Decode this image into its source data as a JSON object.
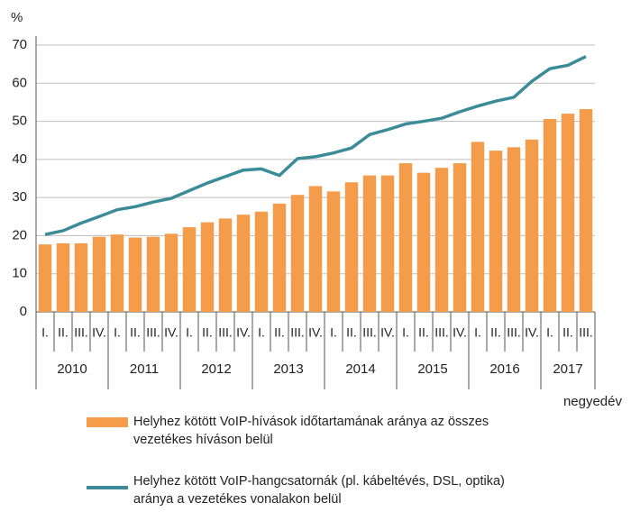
{
  "chart_data": {
    "type": "bar-line",
    "y_label": "%",
    "x_label": "negyedév",
    "categories": [
      "I.",
      "II.",
      "III.",
      "IV.",
      "I.",
      "II.",
      "III.",
      "IV.",
      "I.",
      "II.",
      "III.",
      "IV.",
      "I.",
      "II.",
      "III.",
      "IV.",
      "I.",
      "II.",
      "III.",
      "IV.",
      "I.",
      "II.",
      "III.",
      "IV.",
      "I.",
      "II.",
      "III.",
      "IV.",
      "I.",
      "II.",
      "III."
    ],
    "years": [
      "2010",
      "2011",
      "2012",
      "2013",
      "2014",
      "2015",
      "2016",
      "2017"
    ],
    "ylim": [
      0,
      70
    ],
    "yticks": [
      0,
      10,
      20,
      30,
      40,
      50,
      60,
      70
    ],
    "grid": true,
    "series": [
      {
        "name": "Helyhez kötött VoIP-hívások időtartamának aránya az összes vezetékes híváson belül",
        "type": "bar",
        "color": "#f59c4b",
        "values": [
          17.7,
          18,
          18,
          19.7,
          20.3,
          19.5,
          19.7,
          20.5,
          22.2,
          23.5,
          24.5,
          25.5,
          26.3,
          28.4,
          30.7,
          33,
          31.6,
          34,
          35.8,
          35.8,
          39,
          36.5,
          37.8,
          39,
          44.6,
          42.3,
          43.2,
          45.2,
          50.6,
          52,
          53.2
        ]
      },
      {
        "name": "Helyhez kötött VoIP-hangcsatornák (pl. kábeltévés, DSL, optika) aránya a vezetékes vonalakon belül",
        "type": "line",
        "color": "#3b8c98",
        "values": [
          20.3,
          21.3,
          23.3,
          25,
          26.8,
          27.6,
          28.8,
          29.8,
          31.8,
          33.8,
          35.5,
          37.2,
          37.5,
          35.8,
          40.2,
          40.7,
          41.7,
          43,
          46.5,
          47.8,
          49.3,
          50,
          50.8,
          52.5,
          54,
          55.3,
          56.3,
          60.5,
          63.8,
          64.7,
          67
        ]
      }
    ]
  }
}
